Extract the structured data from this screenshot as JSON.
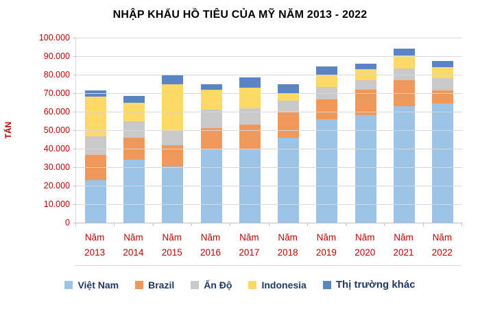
{
  "chart_data": {
    "type": "bar",
    "stacked": true,
    "title": "NHẬP KHẨU HỒ TIÊU CỦA MỸ NĂM 2013 - 2022",
    "ylabel": "TẤN",
    "ylim": [
      0,
      100000
    ],
    "ytick_step": 10000,
    "yticks": [
      "0",
      "10.000",
      "20.000",
      "30.000",
      "40.000",
      "50.000",
      "60.000",
      "70.000",
      "80.000",
      "90.000",
      "100.000"
    ],
    "grid": true,
    "legend_position": "bottom",
    "categories": [
      "Năm 2013",
      "Năm 2014",
      "Năm 2015",
      "Năm 2016",
      "Năm 2017",
      "Năm 2018",
      "Năm 2019",
      "Năm 2020",
      "Năm 2021",
      "Năm 2022"
    ],
    "series": [
      {
        "name": "Việt Nam",
        "color": "#9DC3E6",
        "values": [
          23000,
          34000,
          30500,
          40000,
          40000,
          46000,
          56000,
          58000,
          63000,
          64500
        ]
      },
      {
        "name": "Brazil",
        "color": "#F0975A",
        "values": [
          13500,
          12000,
          11500,
          11000,
          13000,
          14000,
          10500,
          14000,
          14000,
          7000
        ]
      },
      {
        "name": "Ấn Độ",
        "color": "#C9C9C9",
        "values": [
          10000,
          9000,
          8000,
          10000,
          9000,
          6000,
          7000,
          5000,
          6500,
          6500
        ]
      },
      {
        "name": "Indonesia",
        "color": "#FFD966",
        "values": [
          21500,
          10000,
          25000,
          11000,
          11000,
          4000,
          6500,
          6000,
          7000,
          6000
        ]
      },
      {
        "name": "Thị trường khác",
        "color": "#5B84C4",
        "values": [
          3500,
          3500,
          5000,
          3000,
          5500,
          5000,
          4500,
          3000,
          3500,
          3500
        ]
      }
    ]
  }
}
